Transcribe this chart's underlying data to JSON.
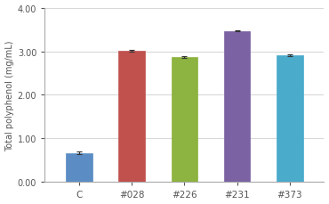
{
  "categories": [
    "C",
    "#028",
    "#226",
    "#231",
    "#373"
  ],
  "values": [
    0.67,
    3.01,
    2.87,
    3.47,
    2.91
  ],
  "errors": [
    0.03,
    0.025,
    0.025,
    0.02,
    0.02
  ],
  "bar_colors": [
    "#5b8dc4",
    "#c0514d",
    "#8db340",
    "#7b62a3",
    "#4aabcb"
  ],
  "ylabel": "Total polyphenol (mg/mL)",
  "ylim": [
    0,
    4.0
  ],
  "yticks": [
    0.0,
    1.0,
    2.0,
    3.0,
    4.0
  ],
  "ytick_labels": [
    "0.00",
    "1.00",
    "2.00",
    "3.00",
    "4.00"
  ],
  "background_color": "#ffffff",
  "plot_bg_color": "#ffffff",
  "grid_color": "#d8d8d8",
  "bar_width": 0.5,
  "spine_color": "#aaaaaa",
  "tick_color": "#555555"
}
